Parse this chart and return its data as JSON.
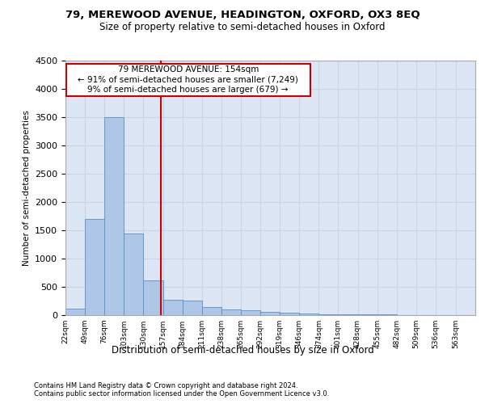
{
  "title1": "79, MEREWOOD AVENUE, HEADINGTON, OXFORD, OX3 8EQ",
  "title2": "Size of property relative to semi-detached houses in Oxford",
  "xlabel": "Distribution of semi-detached houses by size in Oxford",
  "ylabel": "Number of semi-detached properties",
  "footnote1": "Contains HM Land Registry data © Crown copyright and database right 2024.",
  "footnote2": "Contains public sector information licensed under the Open Government Licence v3.0.",
  "annotation_line1": "79 MEREWOOD AVENUE: 154sqm",
  "annotation_line2": "← 91% of semi-detached houses are smaller (7,249)",
  "annotation_line3": "9% of semi-detached houses are larger (679) →",
  "property_size": 154,
  "bin_starts": [
    22,
    49,
    76,
    103,
    130,
    157,
    184,
    211,
    238,
    265,
    292,
    319,
    346,
    373,
    400,
    427,
    454,
    481,
    508,
    535
  ],
  "bin_labels": [
    "22sqm",
    "49sqm",
    "76sqm",
    "103sqm",
    "130sqm",
    "157sqm",
    "184sqm",
    "211sqm",
    "238sqm",
    "265sqm",
    "292sqm",
    "319sqm",
    "346sqm",
    "374sqm",
    "401sqm",
    "428sqm",
    "455sqm",
    "482sqm",
    "509sqm",
    "536sqm",
    "563sqm"
  ],
  "bar_heights": [
    120,
    1700,
    3500,
    1450,
    620,
    270,
    255,
    145,
    100,
    80,
    60,
    40,
    30,
    20,
    15,
    10,
    8,
    5,
    5,
    5
  ],
  "bar_color": "#aec6e8",
  "bar_edge_color": "#5a8fc0",
  "vline_color": "#cc0000",
  "box_color": "#cc0000",
  "ylim": [
    0,
    4500
  ],
  "yticks": [
    0,
    500,
    1000,
    1500,
    2000,
    2500,
    3000,
    3500,
    4000,
    4500
  ],
  "grid_color": "#c8d4e8",
  "background_color": "#dce6f5"
}
